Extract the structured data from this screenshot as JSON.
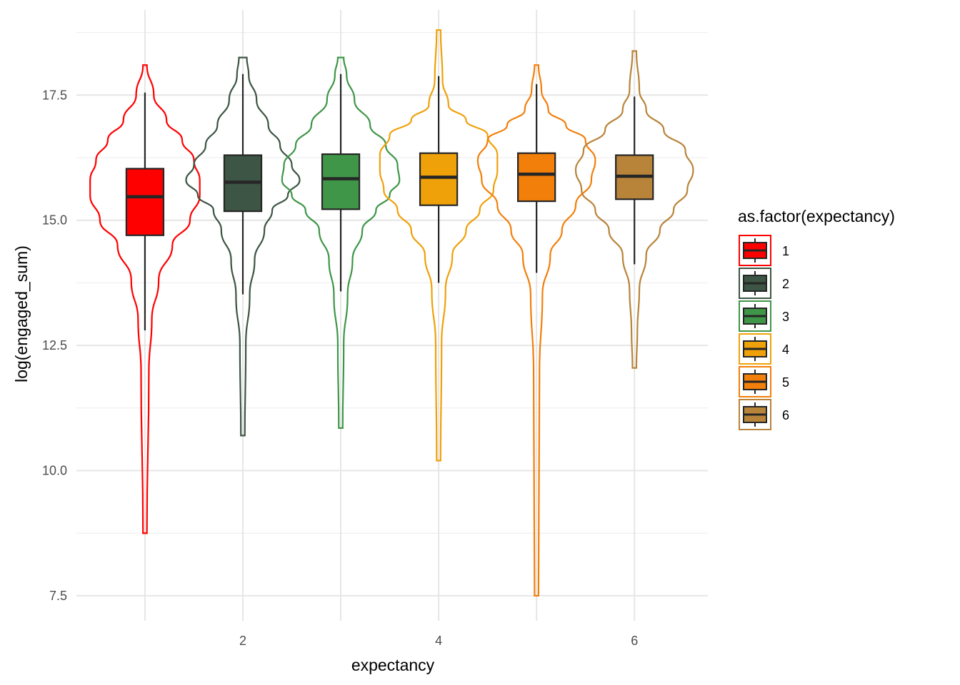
{
  "chart_data": {
    "type": "violin",
    "xlabel": "expectancy",
    "ylabel": "log(engaged_sum)",
    "x_ticks": [
      "2",
      "4",
      "6"
    ],
    "y_ticks": [
      "7.5",
      "10.0",
      "12.5",
      "15.0",
      "17.5"
    ],
    "xlim": [
      0.3,
      6.75
    ],
    "ylim": [
      7.0,
      19.2
    ],
    "grid": true,
    "legend": {
      "title": "as.factor(expectancy)",
      "position": "right"
    },
    "series": [
      {
        "name": "1",
        "x": 1,
        "color": "#FF0000",
        "violin_min": 8.75,
        "violin_max": 18.1,
        "profile": [
          [
            8.75,
            0.02
          ],
          [
            12.0,
            0.04
          ],
          [
            13.0,
            0.07
          ],
          [
            13.8,
            0.14
          ],
          [
            14.5,
            0.28
          ],
          [
            15.0,
            0.46
          ],
          [
            15.5,
            0.56
          ],
          [
            15.8,
            0.56
          ],
          [
            16.2,
            0.5
          ],
          [
            16.6,
            0.38
          ],
          [
            17.0,
            0.22
          ],
          [
            17.5,
            0.09
          ],
          [
            18.1,
            0.02
          ]
        ],
        "box": {
          "q1": 14.7,
          "median": 15.47,
          "q3": 16.03,
          "whisker_low": 12.8,
          "whisker_high": 17.55
        }
      },
      {
        "name": "2",
        "x": 2,
        "color": "#3C5544",
        "violin_min": 10.7,
        "violin_max": 18.25,
        "profile": [
          [
            10.7,
            0.02
          ],
          [
            12.5,
            0.03
          ],
          [
            13.5,
            0.07
          ],
          [
            14.2,
            0.12
          ],
          [
            14.8,
            0.22
          ],
          [
            15.2,
            0.3
          ],
          [
            15.5,
            0.46
          ],
          [
            15.8,
            0.58
          ],
          [
            16.1,
            0.5
          ],
          [
            16.5,
            0.38
          ],
          [
            16.9,
            0.26
          ],
          [
            17.4,
            0.14
          ],
          [
            17.9,
            0.06
          ],
          [
            18.25,
            0.04
          ]
        ],
        "box": {
          "q1": 15.18,
          "median": 15.76,
          "q3": 16.3,
          "whisker_low": 13.52,
          "whisker_high": 17.92
        }
      },
      {
        "name": "3",
        "x": 3,
        "color": "#3F9648",
        "violin_min": 10.85,
        "violin_max": 18.25,
        "profile": [
          [
            10.85,
            0.02
          ],
          [
            12.5,
            0.03
          ],
          [
            13.5,
            0.07
          ],
          [
            14.2,
            0.12
          ],
          [
            14.8,
            0.22
          ],
          [
            15.2,
            0.36
          ],
          [
            15.5,
            0.5
          ],
          [
            15.8,
            0.6
          ],
          [
            16.1,
            0.58
          ],
          [
            16.5,
            0.46
          ],
          [
            16.9,
            0.3
          ],
          [
            17.4,
            0.14
          ],
          [
            17.9,
            0.06
          ],
          [
            18.25,
            0.03
          ]
        ],
        "box": {
          "q1": 15.22,
          "median": 15.83,
          "q3": 16.32,
          "whisker_low": 13.58,
          "whisker_high": 17.92
        }
      },
      {
        "name": "4",
        "x": 4,
        "color": "#EFA10A",
        "violin_min": 10.2,
        "violin_max": 18.8,
        "profile": [
          [
            10.2,
            0.02
          ],
          [
            12.5,
            0.03
          ],
          [
            13.6,
            0.07
          ],
          [
            14.3,
            0.14
          ],
          [
            14.8,
            0.28
          ],
          [
            15.2,
            0.42
          ],
          [
            15.6,
            0.56
          ],
          [
            16.0,
            0.6
          ],
          [
            16.3,
            0.6
          ],
          [
            16.7,
            0.5
          ],
          [
            17.0,
            0.28
          ],
          [
            17.3,
            0.1
          ],
          [
            17.8,
            0.04
          ],
          [
            18.8,
            0.02
          ]
        ],
        "box": {
          "q1": 15.3,
          "median": 15.86,
          "q3": 16.34,
          "whisker_low": 13.75,
          "whisker_high": 17.88
        }
      },
      {
        "name": "5",
        "x": 5,
        "color": "#F27F0A",
        "violin_min": 7.5,
        "violin_max": 18.1,
        "profile": [
          [
            7.5,
            0.02
          ],
          [
            12.0,
            0.03
          ],
          [
            13.5,
            0.06
          ],
          [
            14.3,
            0.14
          ],
          [
            14.8,
            0.26
          ],
          [
            15.3,
            0.4
          ],
          [
            15.8,
            0.56
          ],
          [
            16.2,
            0.6
          ],
          [
            16.6,
            0.5
          ],
          [
            16.9,
            0.3
          ],
          [
            17.2,
            0.12
          ],
          [
            17.6,
            0.05
          ],
          [
            18.1,
            0.02
          ]
        ],
        "box": {
          "q1": 15.38,
          "median": 15.92,
          "q3": 16.34,
          "whisker_low": 13.95,
          "whisker_high": 17.72
        }
      },
      {
        "name": "6",
        "x": 6,
        "color": "#B8843A",
        "violin_min": 12.05,
        "violin_max": 18.38,
        "profile": [
          [
            12.05,
            0.02
          ],
          [
            12.8,
            0.03
          ],
          [
            13.6,
            0.05
          ],
          [
            14.3,
            0.12
          ],
          [
            14.8,
            0.26
          ],
          [
            15.2,
            0.4
          ],
          [
            15.6,
            0.54
          ],
          [
            16.0,
            0.6
          ],
          [
            16.4,
            0.52
          ],
          [
            16.8,
            0.3
          ],
          [
            17.2,
            0.12
          ],
          [
            17.6,
            0.05
          ],
          [
            18.38,
            0.02
          ]
        ],
        "box": {
          "q1": 15.42,
          "median": 15.88,
          "q3": 16.3,
          "whisker_low": 14.12,
          "whisker_high": 17.47
        }
      }
    ]
  }
}
